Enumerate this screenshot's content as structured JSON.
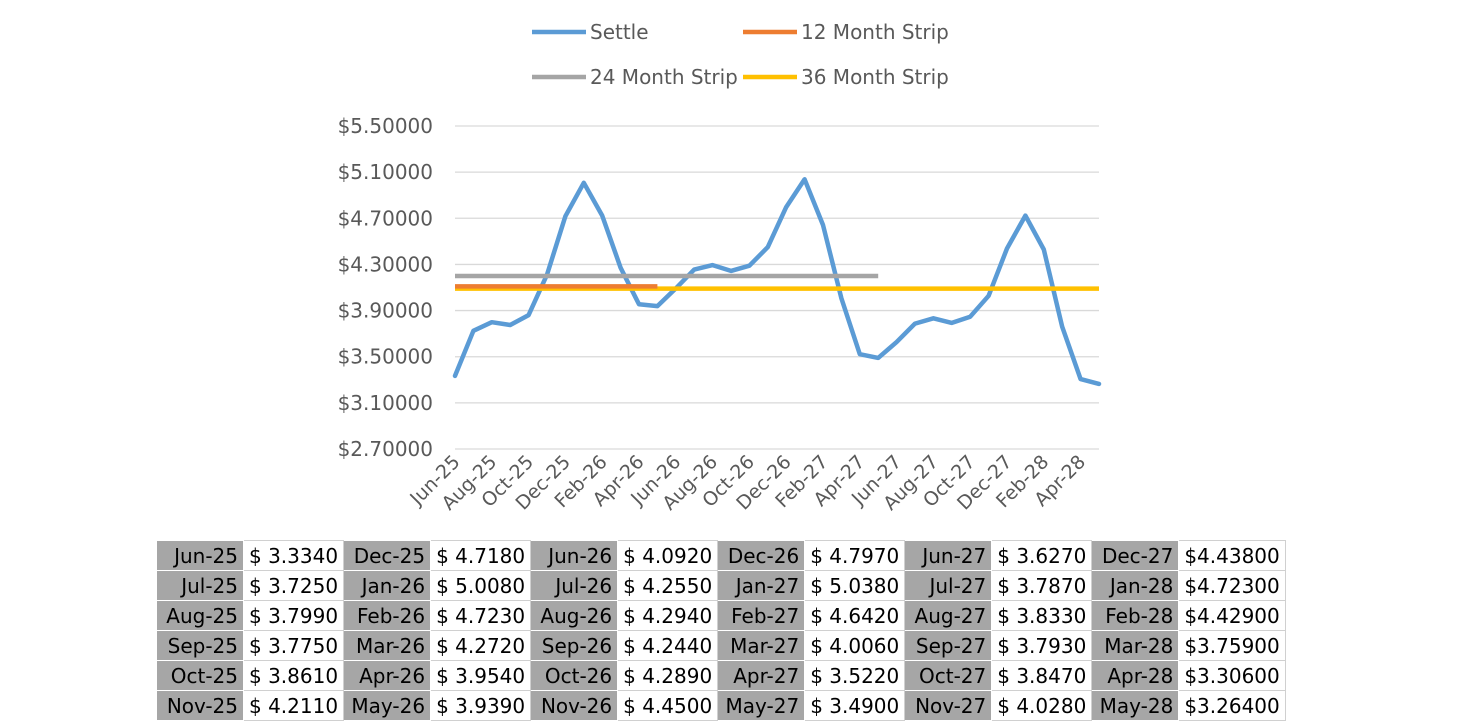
{
  "chart_data": {
    "type": "line",
    "x": [
      "Jun-25",
      "Jul-25",
      "Aug-25",
      "Sep-25",
      "Oct-25",
      "Nov-25",
      "Dec-25",
      "Jan-26",
      "Feb-26",
      "Mar-26",
      "Apr-26",
      "May-26",
      "Jun-26",
      "Jul-26",
      "Aug-26",
      "Sep-26",
      "Oct-26",
      "Nov-26",
      "Dec-26",
      "Jan-27",
      "Feb-27",
      "Mar-27",
      "Apr-27",
      "May-27",
      "Jun-27",
      "Jul-27",
      "Aug-27",
      "Sep-27",
      "Oct-27",
      "Nov-27",
      "Dec-27",
      "Jan-28",
      "Feb-28",
      "Mar-28",
      "Apr-28",
      "May-28"
    ],
    "x_tick_labels": [
      "Jun-25",
      "Aug-25",
      "Oct-25",
      "Dec-25",
      "Feb-26",
      "Apr-26",
      "Jun-26",
      "Aug-26",
      "Oct-26",
      "Dec-26",
      "Feb-27",
      "Apr-27",
      "Jun-27",
      "Aug-27",
      "Oct-27",
      "Dec-27",
      "Feb-28",
      "Apr-28"
    ],
    "y_tick_labels": [
      "$5.50000",
      "$5.10000",
      "$4.70000",
      "$4.30000",
      "$3.90000",
      "$3.50000",
      "$3.10000",
      "$2.70000"
    ],
    "ylim": [
      2.7,
      5.5
    ],
    "grid": "horizontal",
    "legend_position": "top",
    "series": [
      {
        "name": "Settle",
        "color": "#5b9bd5",
        "values": [
          3.334,
          3.725,
          3.799,
          3.775,
          3.861,
          4.211,
          4.718,
          5.008,
          4.723,
          4.272,
          3.954,
          3.939,
          4.092,
          4.255,
          4.294,
          4.244,
          4.289,
          4.45,
          4.797,
          5.038,
          4.642,
          4.006,
          3.522,
          3.49,
          3.627,
          3.787,
          3.833,
          3.793,
          3.847,
          4.028,
          4.438,
          4.723,
          4.429,
          3.759,
          3.306,
          3.264
        ]
      },
      {
        "name": "12 Month Strip",
        "color": "#ed7d31",
        "x_range": [
          "Jun-25",
          "May-26"
        ],
        "value": 4.11
      },
      {
        "name": "24 Month Strip",
        "color": "#a5a5a5",
        "x_range": [
          "Jun-25",
          "May-27"
        ],
        "value": 4.2
      },
      {
        "name": "36 Month Strip",
        "color": "#ffc000",
        "x_range": [
          "Jun-25",
          "May-28"
        ],
        "value": 4.09
      }
    ]
  },
  "table": {
    "rows": [
      [
        [
          "Jun-25",
          "$ 3.3340"
        ],
        [
          "Dec-25",
          "$ 4.7180"
        ],
        [
          "Jun-26",
          "$ 4.0920"
        ],
        [
          "Dec-26",
          "$ 4.7970"
        ],
        [
          "Jun-27",
          "$ 3.6270"
        ],
        [
          "Dec-27",
          "$4.43800"
        ]
      ],
      [
        [
          "Jul-25",
          "$ 3.7250"
        ],
        [
          "Jan-26",
          "$ 5.0080"
        ],
        [
          "Jul-26",
          "$ 4.2550"
        ],
        [
          "Jan-27",
          "$ 5.0380"
        ],
        [
          "Jul-27",
          "$ 3.7870"
        ],
        [
          "Jan-28",
          "$4.72300"
        ]
      ],
      [
        [
          "Aug-25",
          "$ 3.7990"
        ],
        [
          "Feb-26",
          "$ 4.7230"
        ],
        [
          "Aug-26",
          "$ 4.2940"
        ],
        [
          "Feb-27",
          "$ 4.6420"
        ],
        [
          "Aug-27",
          "$ 3.8330"
        ],
        [
          "Feb-28",
          "$4.42900"
        ]
      ],
      [
        [
          "Sep-25",
          "$ 3.7750"
        ],
        [
          "Mar-26",
          "$ 4.2720"
        ],
        [
          "Sep-26",
          "$ 4.2440"
        ],
        [
          "Mar-27",
          "$ 4.0060"
        ],
        [
          "Sep-27",
          "$ 3.7930"
        ],
        [
          "Mar-28",
          "$3.75900"
        ]
      ],
      [
        [
          "Oct-25",
          "$ 3.8610"
        ],
        [
          "Apr-26",
          "$ 3.9540"
        ],
        [
          "Oct-26",
          "$ 4.2890"
        ],
        [
          "Apr-27",
          "$ 3.5220"
        ],
        [
          "Oct-27",
          "$ 3.8470"
        ],
        [
          "Apr-28",
          "$3.30600"
        ]
      ],
      [
        [
          "Nov-25",
          "$ 4.2110"
        ],
        [
          "May-26",
          "$ 3.9390"
        ],
        [
          "Nov-26",
          "$ 4.4500"
        ],
        [
          "May-27",
          "$ 3.4900"
        ],
        [
          "Nov-27",
          "$ 4.0280"
        ],
        [
          "May-28",
          "$3.26400"
        ]
      ]
    ]
  }
}
